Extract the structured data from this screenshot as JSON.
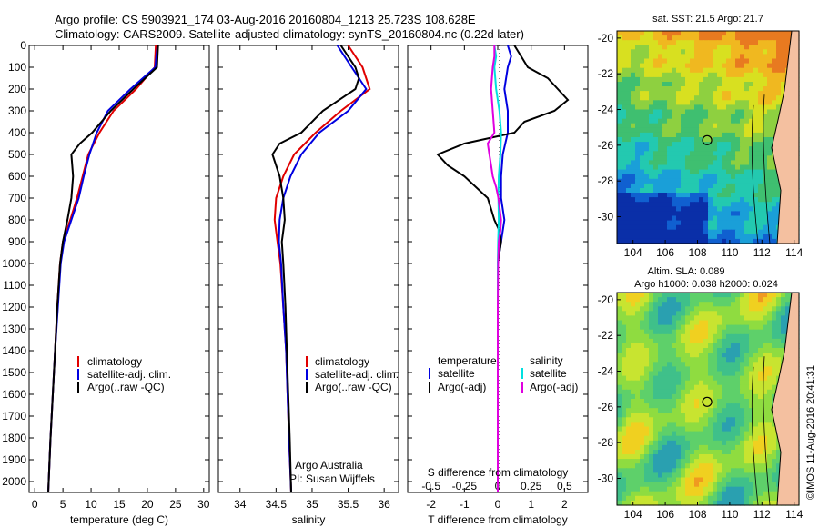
{
  "header": {
    "line1": "Argo profile: CS 5903921_174 03-Aug-2016 20160804_1213 25.723S 108.628E",
    "line2": "Climatology: CARS2009. Satellite-adjusted climatology: synTS_20160804.nc (0.22d later)"
  },
  "side_text": "©IMOS 11-Aug-2016 20:41:31",
  "colors": {
    "climatology": "#e00000",
    "satellite": "#0000e0",
    "argo": "#000000",
    "sal_satellite": "#00e0e0",
    "sal_argo": "#e000e0"
  },
  "chart_data": [
    {
      "type": "line",
      "id": "temperature",
      "xlabel": "temperature (deg C)",
      "ylim": [
        2050,
        0
      ],
      "xlim": [
        -1,
        31
      ],
      "xticks": [
        0,
        5,
        10,
        15,
        20,
        25,
        30
      ],
      "yticks": [
        0,
        100,
        200,
        300,
        400,
        500,
        600,
        700,
        800,
        900,
        1000,
        1100,
        1200,
        1300,
        1400,
        1500,
        1600,
        1700,
        1800,
        1900,
        2000
      ],
      "legend": [
        "climatology",
        "satellite-adj. clim.",
        "Argo(..raw -QC)"
      ],
      "series": [
        {
          "key": "clim",
          "depth": [
            0,
            100,
            200,
            300,
            400,
            500,
            600,
            700,
            800,
            900,
            1000,
            1200,
            1400,
            1600,
            1800,
            2050
          ],
          "values": [
            21.5,
            21.3,
            18,
            14,
            11.5,
            9.5,
            8.5,
            7.5,
            6.3,
            5,
            4.5,
            4,
            3.6,
            3.2,
            2.8,
            2.4
          ]
        },
        {
          "key": "sat",
          "depth": [
            0,
            100,
            200,
            300,
            400,
            500,
            600,
            700,
            800,
            900,
            1000,
            1200,
            1400,
            1600,
            1800,
            2050
          ],
          "values": [
            21.8,
            21.4,
            17,
            13,
            11,
            9.7,
            8.7,
            7.8,
            6.5,
            5.2,
            4.6,
            4.1,
            3.6,
            3.2,
            2.8,
            2.4
          ]
        },
        {
          "key": "argo",
          "depth": [
            0,
            100,
            200,
            300,
            400,
            450,
            500,
            600,
            700,
            800,
            900,
            1000,
            1200,
            1400,
            1600,
            1800,
            2050
          ],
          "values": [
            21.9,
            21.7,
            17.5,
            13.5,
            10.2,
            8,
            6.5,
            6.8,
            6.5,
            5.8,
            5,
            4.5,
            4,
            3.6,
            3.2,
            2.8,
            2.4
          ]
        }
      ]
    },
    {
      "type": "line",
      "id": "salinity",
      "xlabel": "salinity",
      "ylim": [
        2050,
        0
      ],
      "xlim": [
        33.7,
        36.2
      ],
      "xticks": [
        34,
        34.5,
        35,
        35.5,
        36
      ],
      "legend": [
        "climatology",
        "satellite-adj. clim.",
        "Argo(..raw -QC)"
      ],
      "annotation": [
        "Argo Australia",
        "PI: Susan Wijffels"
      ],
      "series": [
        {
          "key": "clim",
          "depth": [
            0,
            100,
            200,
            300,
            400,
            500,
            600,
            700,
            800,
            900,
            1000,
            1200,
            1400,
            1600,
            1800,
            2050
          ],
          "values": [
            35.5,
            35.7,
            35.8,
            35.4,
            35.05,
            34.75,
            34.6,
            34.5,
            34.48,
            34.52,
            34.56,
            34.6,
            34.64,
            34.66,
            34.68,
            34.71
          ]
        },
        {
          "key": "sat",
          "depth": [
            0,
            100,
            200,
            300,
            400,
            500,
            600,
            700,
            800,
            900,
            1000,
            1200,
            1400,
            1600,
            1800,
            2050
          ],
          "values": [
            35.35,
            35.55,
            35.75,
            35.5,
            35.1,
            34.85,
            34.7,
            34.6,
            34.55,
            34.54,
            34.57,
            34.6,
            34.64,
            34.66,
            34.68,
            34.71
          ]
        },
        {
          "key": "argo",
          "depth": [
            0,
            100,
            150,
            200,
            300,
            400,
            450,
            500,
            600,
            700,
            800,
            900,
            1000,
            1200,
            1400,
            1600,
            1800,
            2050
          ],
          "values": [
            35.4,
            35.6,
            35.65,
            35.6,
            35.15,
            34.85,
            34.55,
            34.45,
            34.55,
            34.6,
            34.62,
            34.58,
            34.6,
            34.63,
            34.65,
            34.67,
            34.69,
            34.71
          ]
        }
      ]
    },
    {
      "type": "line",
      "id": "difference",
      "xlabel": "T difference from climatology",
      "xlabel_top": "S difference from climatology",
      "ylim": [
        2050,
        0
      ],
      "xlim": [
        -2.7,
        2.7
      ],
      "xticks": [
        -2,
        -1,
        0,
        1,
        2
      ],
      "xticks_s": [
        "-0.5",
        "-0.25",
        "0",
        "0.25",
        "0.5"
      ],
      "legend_titles": [
        "temperature",
        "salinity"
      ],
      "legend_t": [
        "satellite",
        "Argo(-adj)"
      ],
      "legend_s": [
        "satellite",
        "Argo(-adj)"
      ],
      "series": [
        {
          "key": "t_sat",
          "depth": [
            0,
            50,
            100,
            200,
            300,
            400,
            500,
            600,
            700,
            800,
            900,
            1000,
            1200,
            1500,
            2050
          ],
          "values": [
            0.3,
            0.4,
            0.3,
            0.2,
            0.3,
            0.3,
            0.15,
            0.1,
            0.1,
            0.2,
            0.1,
            0,
            0,
            0,
            0
          ]
        },
        {
          "key": "t_argo",
          "depth": [
            0,
            50,
            100,
            150,
            200,
            250,
            300,
            350,
            400,
            450,
            500,
            550,
            600,
            700,
            750,
            800,
            850,
            900,
            1000,
            1200,
            1500,
            2050
          ],
          "values": [
            0.5,
            0.7,
            0.9,
            1.5,
            1.8,
            2.1,
            1.7,
            0.8,
            0.5,
            -1,
            -1.8,
            -1.5,
            -1,
            -0.3,
            -0.2,
            -0.1,
            0.05,
            0.1,
            0,
            0,
            0,
            0
          ]
        },
        {
          "key": "s_sat",
          "depth": [
            0,
            50,
            100,
            200,
            300,
            400,
            500,
            600,
            700,
            800,
            900,
            1000,
            1200,
            1500,
            2050
          ],
          "values": [
            -0.1,
            -0.05,
            -0.1,
            -0.05,
            0.05,
            0.1,
            0.08,
            0.03,
            0.02,
            0.03,
            0.01,
            0,
            0,
            0,
            0
          ]
        },
        {
          "key": "s_argo",
          "depth": [
            0,
            50,
            100,
            200,
            300,
            400,
            450,
            500,
            550,
            600,
            650,
            700,
            750,
            800,
            850,
            900,
            1000,
            1200,
            1500,
            2050
          ],
          "values": [
            -0.1,
            -0.1,
            -0.15,
            -0.2,
            -0.15,
            -0.1,
            -0.3,
            -0.25,
            -0.2,
            -0.15,
            -0.05,
            0.02,
            0.06,
            0.1,
            0.08,
            0.03,
            0.01,
            0,
            0,
            0
          ]
        }
      ]
    }
  ],
  "maps": [
    {
      "id": "sst",
      "title": "sat. SST: 21.5  Argo: 21.7",
      "xticks": [
        104,
        106,
        108,
        110,
        112,
        114
      ],
      "yticks": [
        -20,
        -22,
        -24,
        -26,
        -28,
        -30
      ]
    },
    {
      "id": "sla",
      "title1": "Altim. SLA: 0.089",
      "title2": "Argo h1000: 0.038 h2000: 0.024",
      "xticks": [
        104,
        106,
        108,
        110,
        112,
        114
      ],
      "yticks": [
        -20,
        -22,
        -24,
        -26,
        -28,
        -30
      ]
    }
  ]
}
